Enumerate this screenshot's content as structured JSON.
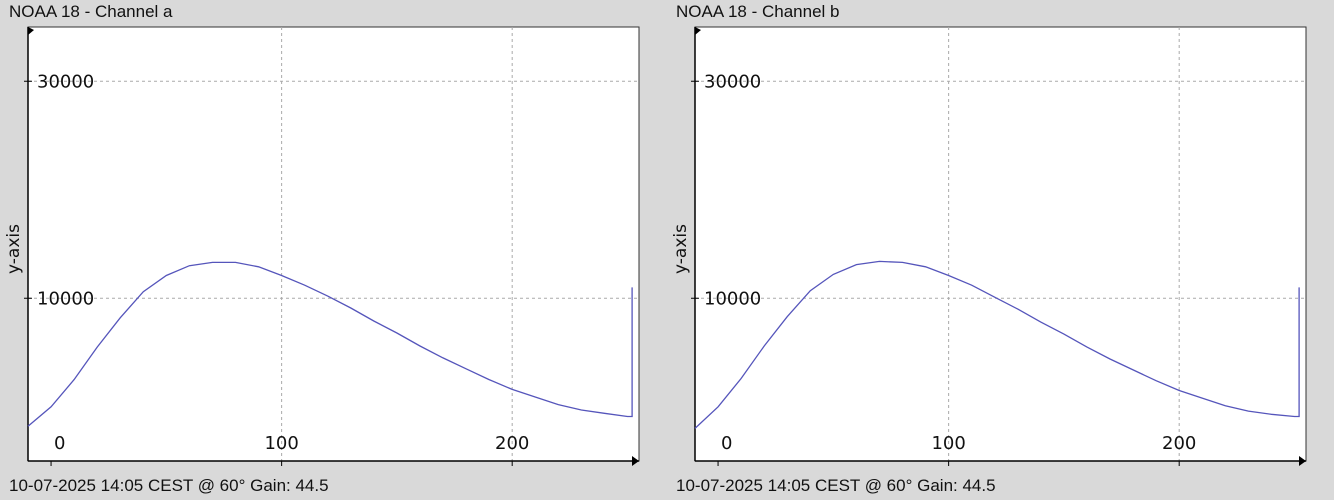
{
  "chart_data": [
    {
      "type": "line",
      "title": "NOAA 18 - Channel a",
      "footer": "10-07-2025 14:05 CEST @ 60° Gain: 44.5",
      "xlabel": "",
      "ylabel": "y-axis",
      "xlim": [
        -10,
        255
      ],
      "ylim": [
        -5000,
        35000
      ],
      "x_ticks": [
        0,
        100,
        200
      ],
      "y_ticks": [
        10000,
        30000
      ],
      "grid": true,
      "series": [
        {
          "color": "#5555bb",
          "x": [
            -10,
            0,
            10,
            20,
            30,
            40,
            50,
            60,
            70,
            80,
            90,
            100,
            110,
            120,
            130,
            140,
            150,
            160,
            170,
            180,
            190,
            200,
            210,
            220,
            230,
            240,
            250,
            252,
            252
          ],
          "y": [
            -1800,
            0,
            2500,
            5500,
            8200,
            10600,
            12100,
            13000,
            13300,
            13300,
            12900,
            12100,
            11200,
            10200,
            9100,
            7900,
            6800,
            5600,
            4500,
            3500,
            2500,
            1600,
            900,
            200,
            -300,
            -600,
            -900,
            -900,
            11000
          ]
        }
      ]
    },
    {
      "type": "line",
      "title": "NOAA 18 - Channel b",
      "footer": "10-07-2025 14:05 CEST @ 60° Gain: 44.5",
      "xlabel": "",
      "ylabel": "y-axis",
      "xlim": [
        -10,
        255
      ],
      "ylim": [
        -5000,
        35000
      ],
      "x_ticks": [
        0,
        100,
        200
      ],
      "y_ticks": [
        10000,
        30000
      ],
      "grid": true,
      "series": [
        {
          "color": "#5555bb",
          "x": [
            -10,
            0,
            10,
            20,
            30,
            40,
            50,
            60,
            70,
            80,
            90,
            100,
            110,
            120,
            130,
            140,
            150,
            160,
            170,
            180,
            190,
            200,
            210,
            220,
            230,
            240,
            250,
            252,
            252
          ],
          "y": [
            -2000,
            0,
            2600,
            5600,
            8300,
            10700,
            12200,
            13100,
            13400,
            13300,
            12900,
            12100,
            11200,
            10100,
            9000,
            7800,
            6700,
            5500,
            4400,
            3400,
            2400,
            1500,
            800,
            100,
            -400,
            -700,
            -900,
            -900,
            11000
          ]
        }
      ]
    }
  ]
}
